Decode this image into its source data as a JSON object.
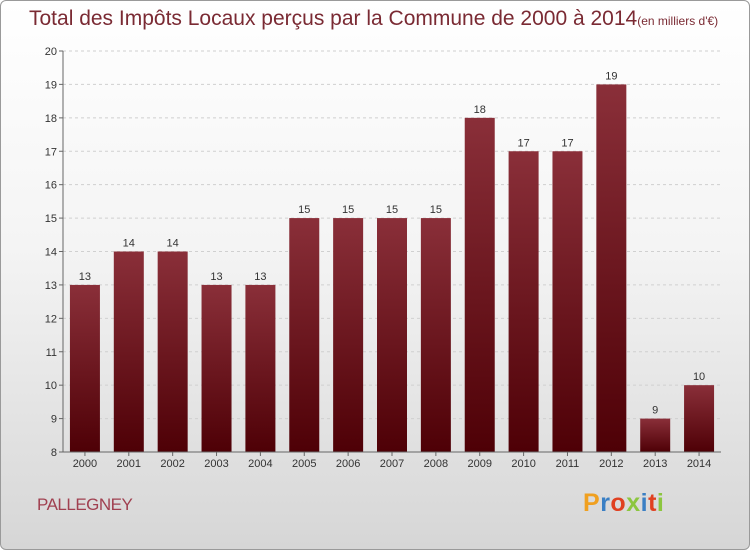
{
  "title": "Total des Impôts Locaux perçus par la Commune de 2000 à 2014",
  "unit": "(en milliers d'€)",
  "commune": "PALLEGNEY",
  "logo": {
    "letters": [
      "P",
      "r",
      "o",
      "x",
      "i",
      "t",
      "i"
    ],
    "colors": [
      "#f0a020",
      "#3a7fc4",
      "#e04020",
      "#8cc63f",
      "#3a7fc4",
      "#e04020",
      "#8cc63f"
    ]
  },
  "chart_data": {
    "type": "bar",
    "title": "Total des Impôts Locaux perçus par la Commune de 2000 à 2014",
    "xlabel": "",
    "ylabel": "",
    "ylim": [
      8,
      20
    ],
    "yticks": [
      8,
      9,
      10,
      11,
      12,
      13,
      14,
      15,
      16,
      17,
      18,
      19,
      20
    ],
    "grid": true,
    "categories": [
      "2000",
      "2001",
      "2002",
      "2003",
      "2004",
      "2005",
      "2006",
      "2007",
      "2008",
      "2009",
      "2010",
      "2011",
      "2012",
      "2013",
      "2014"
    ],
    "values": [
      13,
      14,
      14,
      13,
      13,
      15,
      15,
      15,
      15,
      18,
      17,
      17,
      19,
      9,
      10
    ],
    "bar_color": "#7a1f2b"
  }
}
